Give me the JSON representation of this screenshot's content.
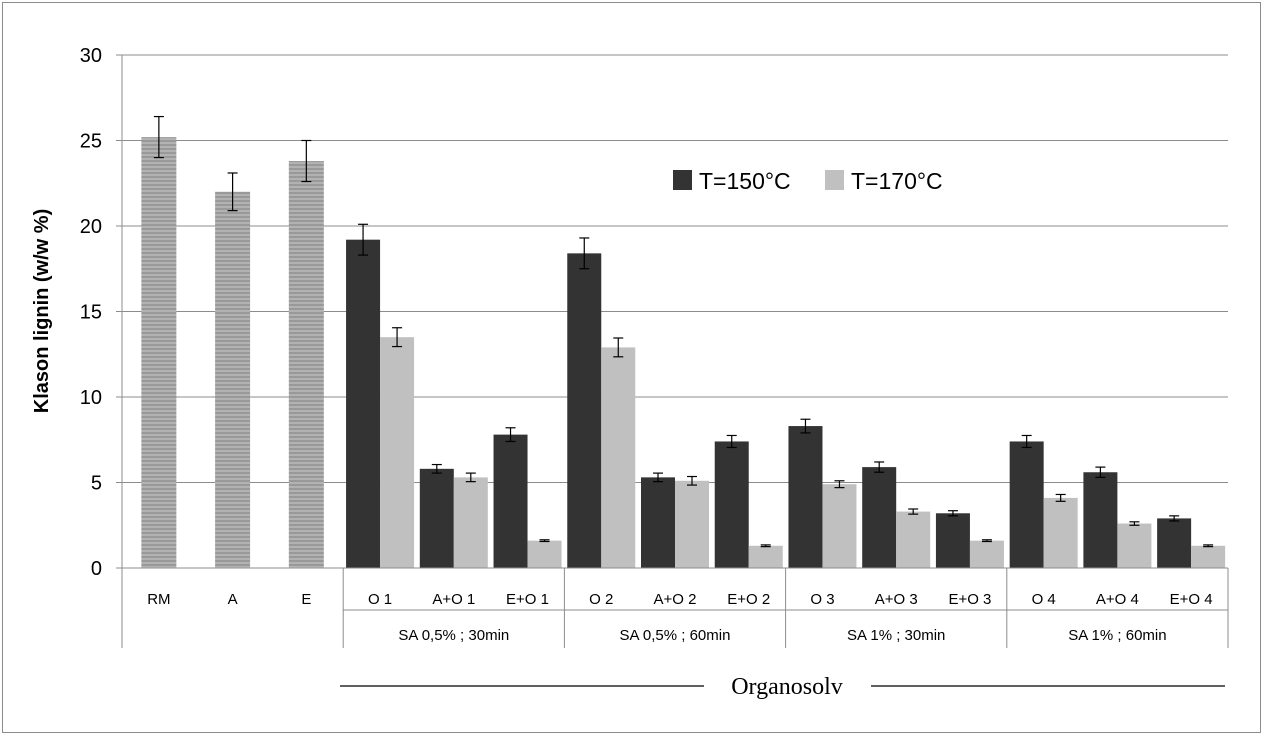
{
  "chart_data": {
    "type": "bar",
    "ylabel": "Klason lignin  (w/w %)",
    "ylim": [
      0,
      30
    ],
    "yticks": [
      0,
      5,
      10,
      15,
      20,
      25,
      30
    ],
    "grid": true,
    "legend_position": "top-right",
    "categories": [
      "RM",
      "A",
      "E",
      "O 1",
      "A+O 1",
      "E+O 1",
      "O 2",
      "A+O 2",
      "E+O 2",
      "O 3",
      "A+O 3",
      "E+O 3",
      "O 4",
      "A+O 4",
      "E+O 4"
    ],
    "groups": [
      {
        "label": "",
        "categories": [
          "RM",
          "A",
          "E"
        ]
      },
      {
        "label": "SA 0,5% ; 30min",
        "categories": [
          "O 1",
          "A+O 1",
          "E+O 1"
        ]
      },
      {
        "label": "SA 0,5% ; 60min",
        "categories": [
          "O 2",
          "A+O 2",
          "E+O 2"
        ]
      },
      {
        "label": "SA 1% ; 30min",
        "categories": [
          "O 3",
          "A+O 3",
          "E+O 3"
        ]
      },
      {
        "label": "SA 1% ; 60min",
        "categories": [
          "O 4",
          "A+O 4",
          "E+O 4"
        ]
      }
    ],
    "group_title": "Organosolv",
    "reference": {
      "categories": [
        "RM",
        "A",
        "E"
      ],
      "values": [
        25.2,
        22.0,
        23.8
      ],
      "errors": [
        1.2,
        1.1,
        1.2
      ],
      "color": "#a6a6a6"
    },
    "series": [
      {
        "name": "T=150°C",
        "color": "#333333",
        "values": [
          null,
          null,
          null,
          19.2,
          5.8,
          7.8,
          18.4,
          5.3,
          7.4,
          8.3,
          5.9,
          3.2,
          7.4,
          5.6,
          2.9
        ],
        "errors": [
          null,
          null,
          null,
          0.9,
          0.25,
          0.4,
          0.9,
          0.25,
          0.35,
          0.4,
          0.3,
          0.15,
          0.35,
          0.3,
          0.15
        ]
      },
      {
        "name": "T=170°C",
        "color": "#c0c0c0",
        "values": [
          null,
          null,
          null,
          13.5,
          5.3,
          1.6,
          12.9,
          5.1,
          1.3,
          4.9,
          3.3,
          1.6,
          4.1,
          2.6,
          1.3
        ],
        "errors": [
          null,
          null,
          null,
          0.55,
          0.25,
          0.05,
          0.55,
          0.25,
          0.05,
          0.2,
          0.15,
          0.05,
          0.2,
          0.1,
          0.05
        ]
      }
    ]
  }
}
